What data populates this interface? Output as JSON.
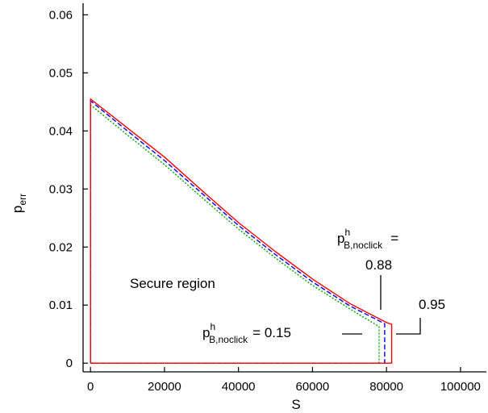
{
  "chart_data": {
    "type": "line",
    "title": "",
    "xlabel": "S",
    "ylabel_main": "p",
    "ylabel_sub": "err",
    "xlim": [
      -2000,
      107000
    ],
    "ylim": [
      -0.0015,
      0.062
    ],
    "x_ticks": [
      0,
      20000,
      40000,
      60000,
      80000,
      100000
    ],
    "y_ticks": [
      0,
      0.01,
      0.02,
      0.03,
      0.04,
      0.05,
      0.06
    ],
    "x_tick_labels": [
      "0",
      "20000",
      "40000",
      "60000",
      "80000",
      "100000"
    ],
    "y_tick_labels": [
      "0",
      "0.01",
      "0.02",
      "0.03",
      "0.04",
      "0.05",
      "0.06"
    ],
    "grid": false,
    "legend": "none",
    "series": [
      {
        "color": "#ff0000",
        "dash": "solid",
        "points": [
          [
            0,
            0
          ],
          [
            0,
            0.0455
          ],
          [
            10000,
            0.0405
          ],
          [
            20000,
            0.0355
          ],
          [
            30000,
            0.0298
          ],
          [
            40000,
            0.0242
          ],
          [
            50000,
            0.0192
          ],
          [
            60000,
            0.0145
          ],
          [
            70000,
            0.0103
          ],
          [
            80000,
            0.007
          ],
          [
            81400,
            0.0067
          ],
          [
            81400,
            0
          ],
          [
            0,
            0
          ]
        ]
      },
      {
        "color": "#0000ff",
        "dash": "dashed",
        "points": [
          [
            0,
            0
          ],
          [
            0,
            0.0452
          ],
          [
            10000,
            0.04
          ],
          [
            20000,
            0.0349
          ],
          [
            30000,
            0.0293
          ],
          [
            40000,
            0.0237
          ],
          [
            50000,
            0.0187
          ],
          [
            60000,
            0.014
          ],
          [
            70000,
            0.0099
          ],
          [
            79500,
            0.0068
          ],
          [
            79500,
            0
          ],
          [
            0,
            0
          ]
        ]
      },
      {
        "color": "#00aa00",
        "dash": "dotted",
        "points": [
          [
            0,
            0
          ],
          [
            0,
            0.0445
          ],
          [
            10000,
            0.0393
          ],
          [
            20000,
            0.0342
          ],
          [
            30000,
            0.0286
          ],
          [
            40000,
            0.0231
          ],
          [
            50000,
            0.0181
          ],
          [
            60000,
            0.0134
          ],
          [
            70000,
            0.0094
          ],
          [
            78000,
            0.0063
          ],
          [
            78000,
            0
          ],
          [
            0,
            0
          ]
        ]
      }
    ],
    "annotations": {
      "region": "Secure region",
      "label_top_p": "p",
      "label_top_sup": "h",
      "label_top_sub": "B,noclick",
      "label_top_eq": "=",
      "label_top_val": "0.88",
      "label_right_val": "0.95",
      "label_left_p": "p",
      "label_left_sup": "h",
      "label_left_sub": "B,noclick",
      "label_left_eq": "= 0.15"
    }
  }
}
